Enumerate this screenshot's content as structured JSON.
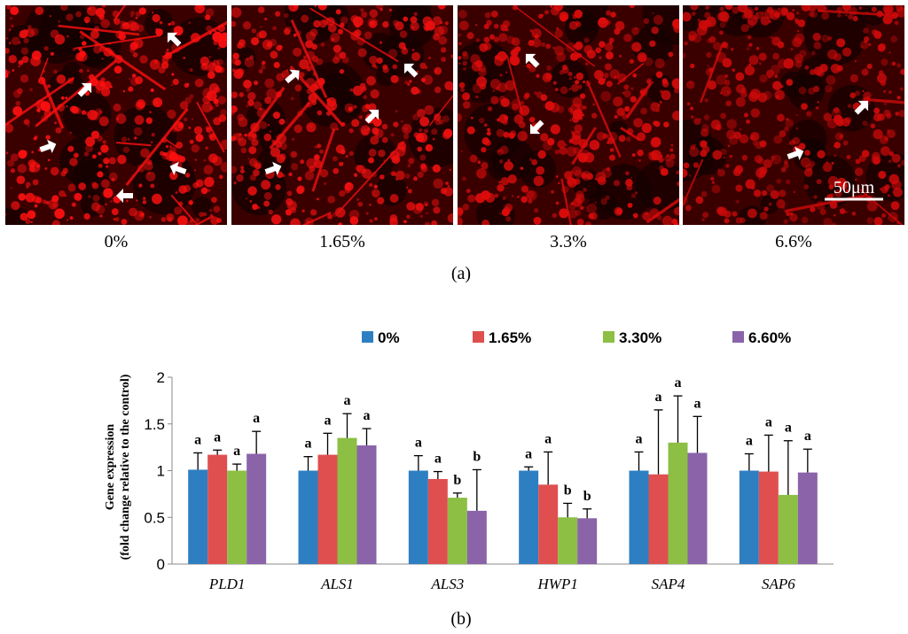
{
  "panel_a": {
    "caption": "(a)",
    "images": [
      {
        "label": "0%",
        "hue": "#ff1010"
      },
      {
        "label": "1.65%",
        "hue": "#f01010"
      },
      {
        "label": "3.3%",
        "hue": "#e00c0c"
      },
      {
        "label": "6.6%",
        "hue": "#d00a0a"
      }
    ],
    "scale_bar": "50μm"
  },
  "panel_b": {
    "caption": "(b)"
  },
  "chart_data": {
    "type": "bar",
    "title": "",
    "xlabel": "",
    "ylabel_line1": "Gene expression",
    "ylabel_line2": "(fold change relative to the control)",
    "ylim": [
      0,
      2
    ],
    "yticks": [
      "0",
      "0.5",
      "1",
      "1.5",
      "2"
    ],
    "ytick_values": [
      0,
      0.5,
      1,
      1.5,
      2
    ],
    "categories": [
      "PLD1",
      "ALS1",
      "ALS3",
      "HWP1",
      "SAP4",
      "SAP6"
    ],
    "series": [
      {
        "name": "0%",
        "color": "#2e7fc2",
        "values": [
          1.01,
          1.0,
          1.0,
          1.0,
          1.0,
          1.0
        ],
        "errors": [
          0.18,
          0.15,
          0.16,
          0.04,
          0.2,
          0.18
        ],
        "letters": [
          "a",
          "a",
          "a",
          "a",
          "a",
          "a"
        ]
      },
      {
        "name": "1.65%",
        "color": "#e04f4f",
        "values": [
          1.17,
          1.17,
          0.91,
          0.85,
          0.96,
          0.99
        ],
        "errors": [
          0.05,
          0.23,
          0.08,
          0.35,
          0.69,
          0.39
        ],
        "letters": [
          "a",
          "a",
          "a",
          "a",
          "a",
          "a"
        ]
      },
      {
        "name": "3.30%",
        "color": "#8cbf44",
        "values": [
          1.0,
          1.35,
          0.71,
          0.5,
          1.3,
          0.74
        ],
        "errors": [
          0.07,
          0.26,
          0.05,
          0.15,
          0.5,
          0.58
        ],
        "letters": [
          "a",
          "a",
          "b",
          "b",
          "a",
          "a"
        ]
      },
      {
        "name": "6.60%",
        "color": "#8a63a9",
        "values": [
          1.18,
          1.27,
          0.57,
          0.49,
          1.19,
          0.98
        ],
        "errors": [
          0.24,
          0.18,
          0.44,
          0.1,
          0.39,
          0.25
        ],
        "letters": [
          "a",
          "a",
          "b",
          "b",
          "a",
          "a"
        ]
      }
    ]
  }
}
